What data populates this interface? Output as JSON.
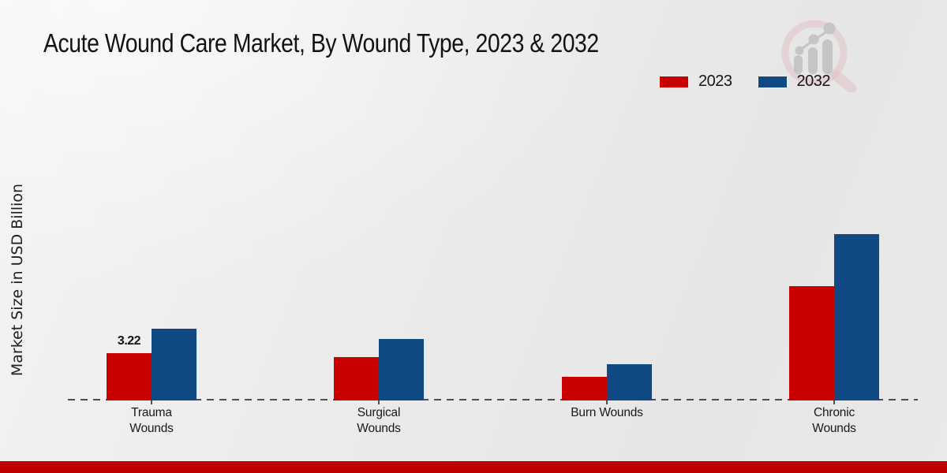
{
  "page": {
    "background_color": "#ebebeb",
    "footer_bar_color": "#c00000"
  },
  "logo": {
    "ring_color": "#e2bfc2",
    "bars_color": "#c5c5c7"
  },
  "chart_data": {
    "type": "bar",
    "title": "Acute Wound Care Market, By Wound Type, 2023 & 2032",
    "xlabel": "",
    "ylabel": "Market Size in USD Billion",
    "categories": [
      "Trauma Wounds",
      "Surgical Wounds",
      "Burn Wounds",
      "Chronic Wounds"
    ],
    "series": [
      {
        "name": "2023",
        "color": "#c80000",
        "values": [
          3.22,
          2.95,
          1.6,
          7.8
        ],
        "data_labels": [
          "3.22",
          "",
          "",
          ""
        ]
      },
      {
        "name": "2032",
        "color": "#104984",
        "values": [
          4.9,
          4.2,
          2.45,
          11.3
        ],
        "data_labels": [
          "",
          "",
          "",
          ""
        ]
      }
    ],
    "ylim": [
      0,
      12
    ],
    "grid": false,
    "legend_position": "top-right",
    "baseline_style": "dashed"
  }
}
